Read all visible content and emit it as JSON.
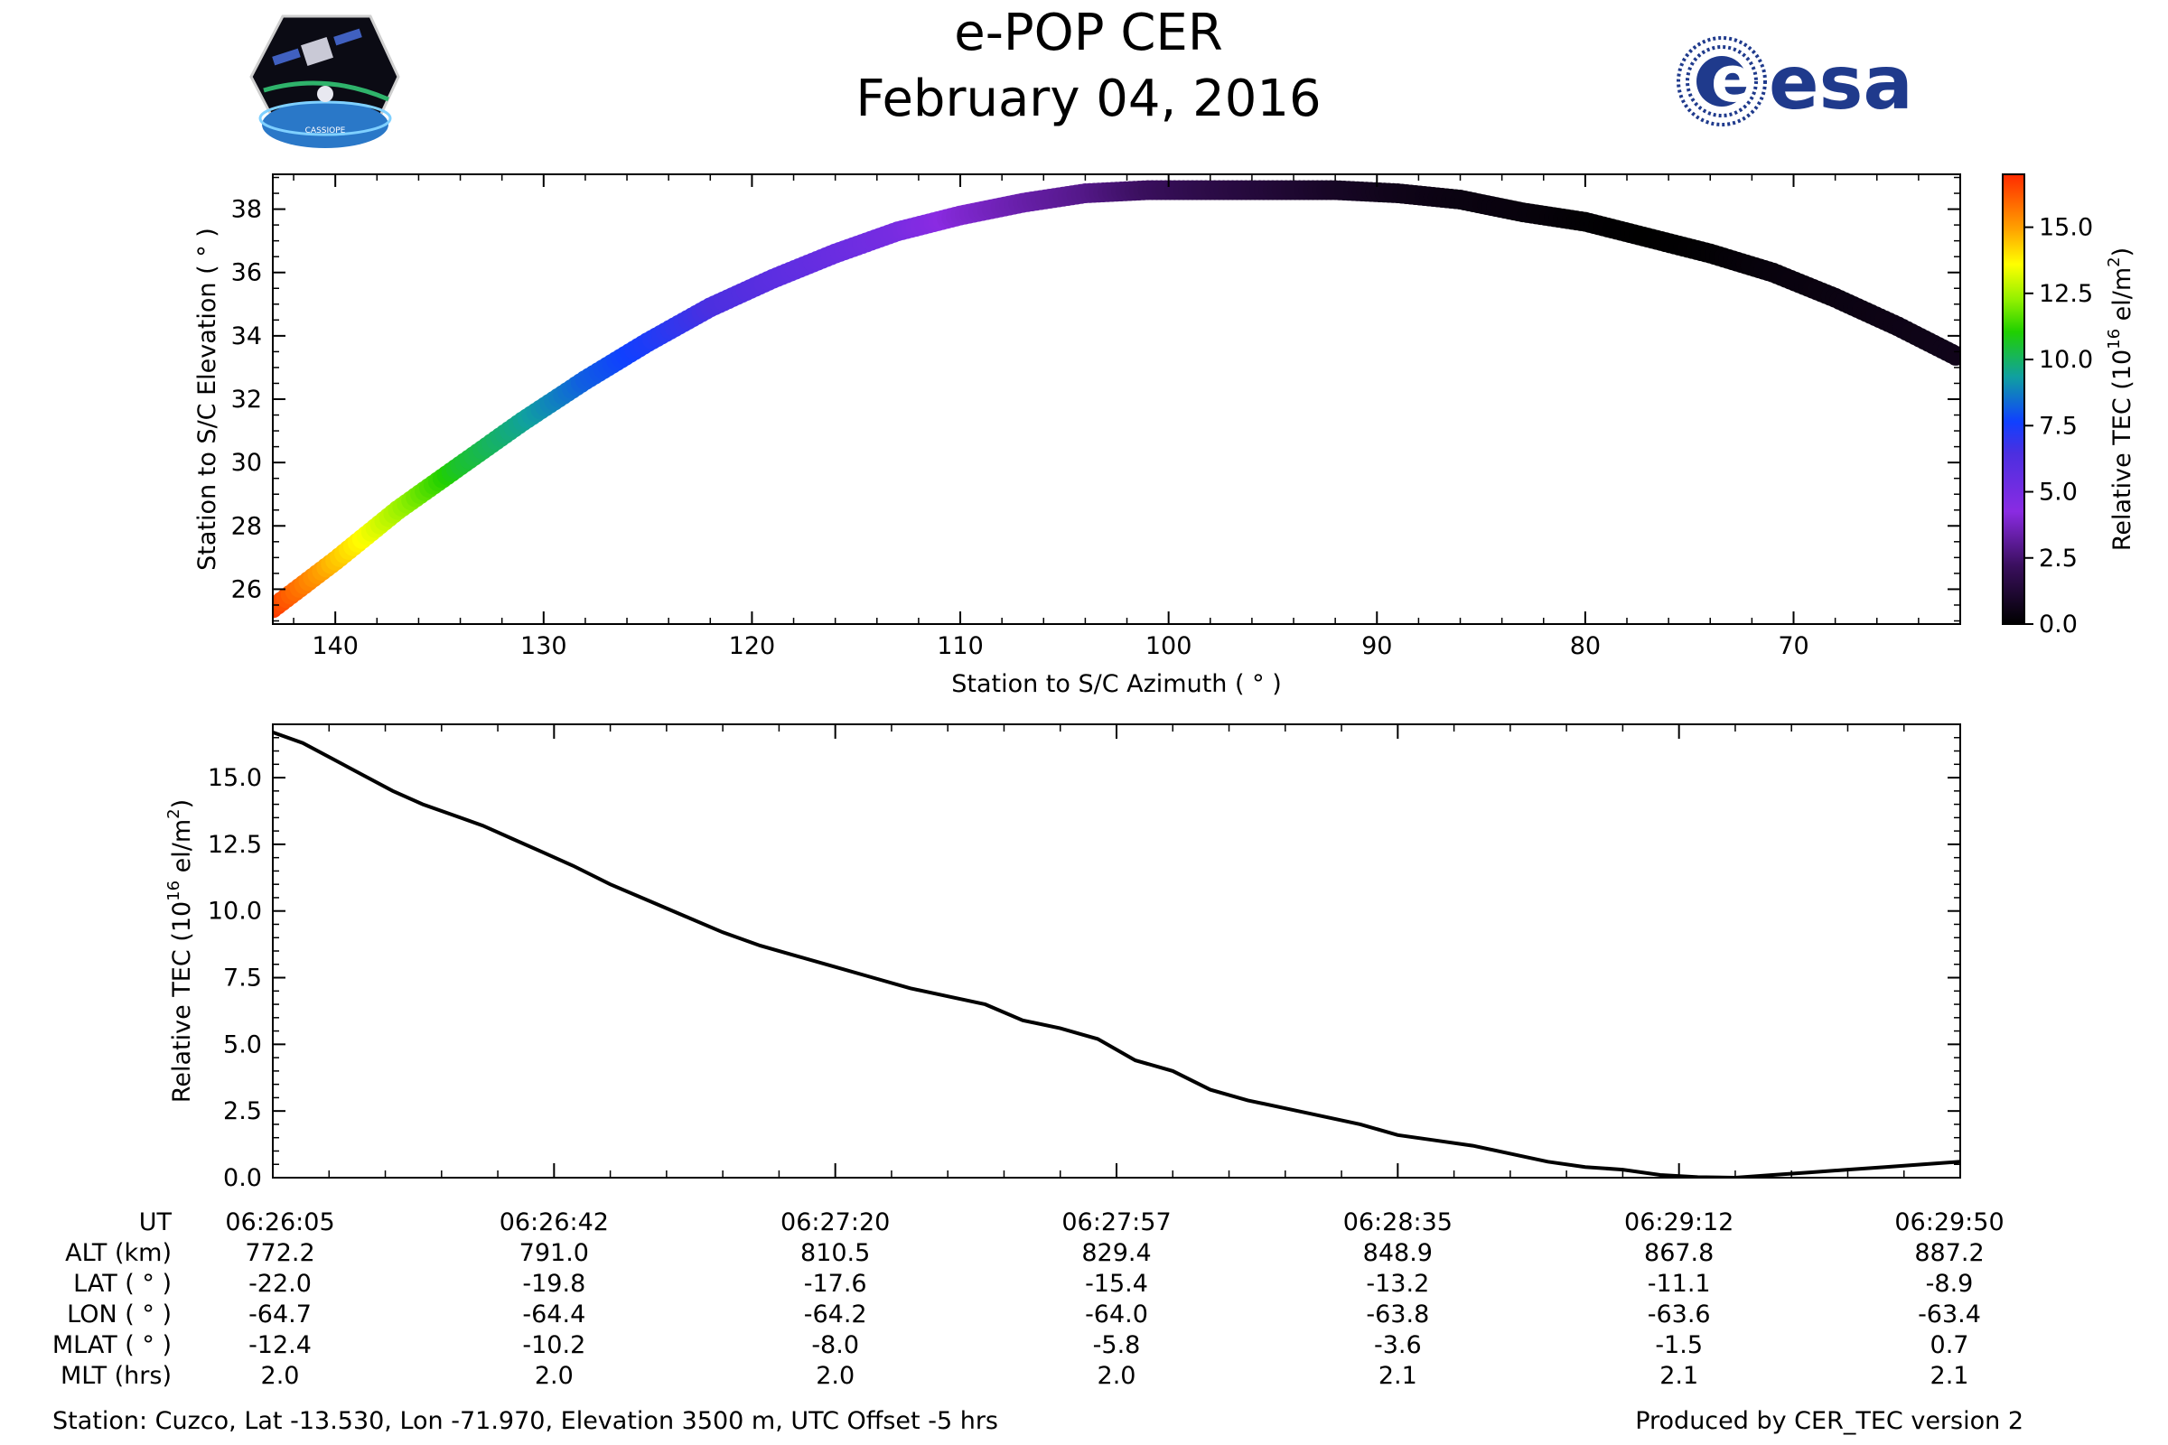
{
  "header": {
    "title": "e-POP CER",
    "date": "February 04, 2016",
    "left_logo_text": "CASSIOPE",
    "right_logo_text": "esa"
  },
  "colors": {
    "esa_blue": "#1f3a8c",
    "line": "#000000"
  },
  "chart_data": [
    {
      "type": "scatter",
      "xlabel": "Station to S/C Azimuth ( ° )",
      "ylabel": "Station to S/C Elevation ( ° )",
      "xlim": [
        143,
        62
      ],
      "ylim": [
        24.9,
        39.1
      ],
      "xticks": [
        140,
        130,
        120,
        110,
        100,
        90,
        80,
        70
      ],
      "yticks": [
        26,
        28,
        30,
        32,
        34,
        36,
        38
      ],
      "xtick_labels": [
        "140",
        "130",
        "120",
        "110",
        "100",
        "90",
        "80",
        "70"
      ],
      "ytick_labels": [
        "26",
        "28",
        "30",
        "32",
        "34",
        "36",
        "38"
      ],
      "track": {
        "azimuth": [
          143.0,
          140,
          137,
          134,
          131,
          128,
          125,
          122,
          119,
          116,
          113,
          110,
          107,
          104,
          101,
          98,
          95,
          92,
          89,
          86,
          83,
          80,
          77,
          74,
          71,
          68,
          65,
          62
        ],
        "elevation": [
          25.4,
          26.9,
          28.5,
          29.9,
          31.3,
          32.6,
          33.8,
          34.9,
          35.8,
          36.6,
          37.3,
          37.8,
          38.2,
          38.5,
          38.6,
          38.6,
          38.6,
          38.6,
          38.5,
          38.3,
          37.9,
          37.6,
          37.1,
          36.6,
          36.0,
          35.2,
          34.3,
          33.3
        ],
        "tec": [
          16.7,
          14.5,
          12.5,
          10.6,
          9.5,
          8.2,
          7.4,
          6.5,
          5.9,
          5.4,
          4.9,
          4.0,
          3.4,
          2.9,
          2.2,
          1.7,
          1.3,
          0.9,
          0.6,
          0.4,
          0.3,
          0.1,
          0.0,
          0.1,
          0.3,
          0.4,
          0.5,
          0.6
        ]
      },
      "colorbar": {
        "label": "Relative TEC (10",
        "label_sup": "16",
        "label_end": " el/m",
        "label_sup2": "2",
        "label_close": ")",
        "range": [
          0,
          17
        ],
        "ticks": [
          0.0,
          2.5,
          5.0,
          7.5,
          10.0,
          12.5,
          15.0
        ],
        "tick_labels": [
          "0.0",
          "2.5",
          "5.0",
          "7.5",
          "10.0",
          "12.5",
          "15.0"
        ]
      }
    },
    {
      "type": "line",
      "ylabel": "Relative TEC (10",
      "ylabel_sup": "16",
      "ylabel_end": " el/m",
      "ylabel_sup2": "2",
      "ylabel_close": ")",
      "xlim": [
        0,
        225
      ],
      "ylim": [
        0,
        17
      ],
      "yticks": [
        0.0,
        2.5,
        5.0,
        7.5,
        10.0,
        12.5,
        15.0
      ],
      "ytick_labels": [
        "0.0",
        "2.5",
        "5.0",
        "7.5",
        "10.0",
        "12.5",
        "15.0"
      ],
      "series": [
        {
          "x": [
            0,
            4,
            8,
            12,
            16,
            20,
            24,
            28,
            32,
            36,
            40,
            45,
            50,
            55,
            60,
            65,
            70,
            75,
            80,
            85,
            90,
            95,
            100,
            105,
            110,
            115,
            120,
            125,
            130,
            135,
            140,
            145,
            150,
            155,
            160,
            165,
            170,
            175,
            180,
            185,
            190,
            195,
            200,
            205,
            210,
            215,
            220,
            225
          ],
          "y": [
            16.7,
            16.3,
            15.7,
            15.1,
            14.5,
            14.0,
            13.6,
            13.2,
            12.7,
            12.2,
            11.7,
            11.0,
            10.4,
            9.8,
            9.2,
            8.7,
            8.3,
            7.9,
            7.5,
            7.1,
            6.8,
            6.5,
            5.9,
            5.6,
            5.2,
            4.4,
            4.0,
            3.3,
            2.9,
            2.6,
            2.3,
            2.0,
            1.6,
            1.4,
            1.2,
            0.9,
            0.6,
            0.4,
            0.3,
            0.1,
            0.02,
            0.0,
            0.1,
            0.2,
            0.3,
            0.4,
            0.5,
            0.6
          ]
        }
      ]
    }
  ],
  "ephemeris": {
    "row_labels": [
      "UT",
      "ALT (km)",
      "LAT ( ° )",
      "LON ( ° )",
      "MLAT ( ° )",
      "MLT (hrs)"
    ],
    "columns": [
      [
        "06:26:05",
        "772.2",
        "-22.0",
        "-64.7",
        "-12.4",
        "2.0"
      ],
      [
        "06:26:42",
        "791.0",
        "-19.8",
        "-64.4",
        "-10.2",
        "2.0"
      ],
      [
        "06:27:20",
        "810.5",
        "-17.6",
        "-64.2",
        "-8.0",
        "2.0"
      ],
      [
        "06:27:57",
        "829.4",
        "-15.4",
        "-64.0",
        "-5.8",
        "2.0"
      ],
      [
        "06:28:35",
        "848.9",
        "-13.2",
        "-63.8",
        "-3.6",
        "2.1"
      ],
      [
        "06:29:12",
        "867.8",
        "-11.1",
        "-63.6",
        "-1.5",
        "2.1"
      ],
      [
        "06:29:50",
        "887.2",
        "-8.9",
        "-63.4",
        "0.7",
        "2.1"
      ]
    ]
  },
  "footer": {
    "station": "Station: Cuzco, Lat -13.530, Lon -71.970, Elevation 3500 m, UTC Offset -5 hrs",
    "produced": "Produced by CER_TEC version 2"
  }
}
